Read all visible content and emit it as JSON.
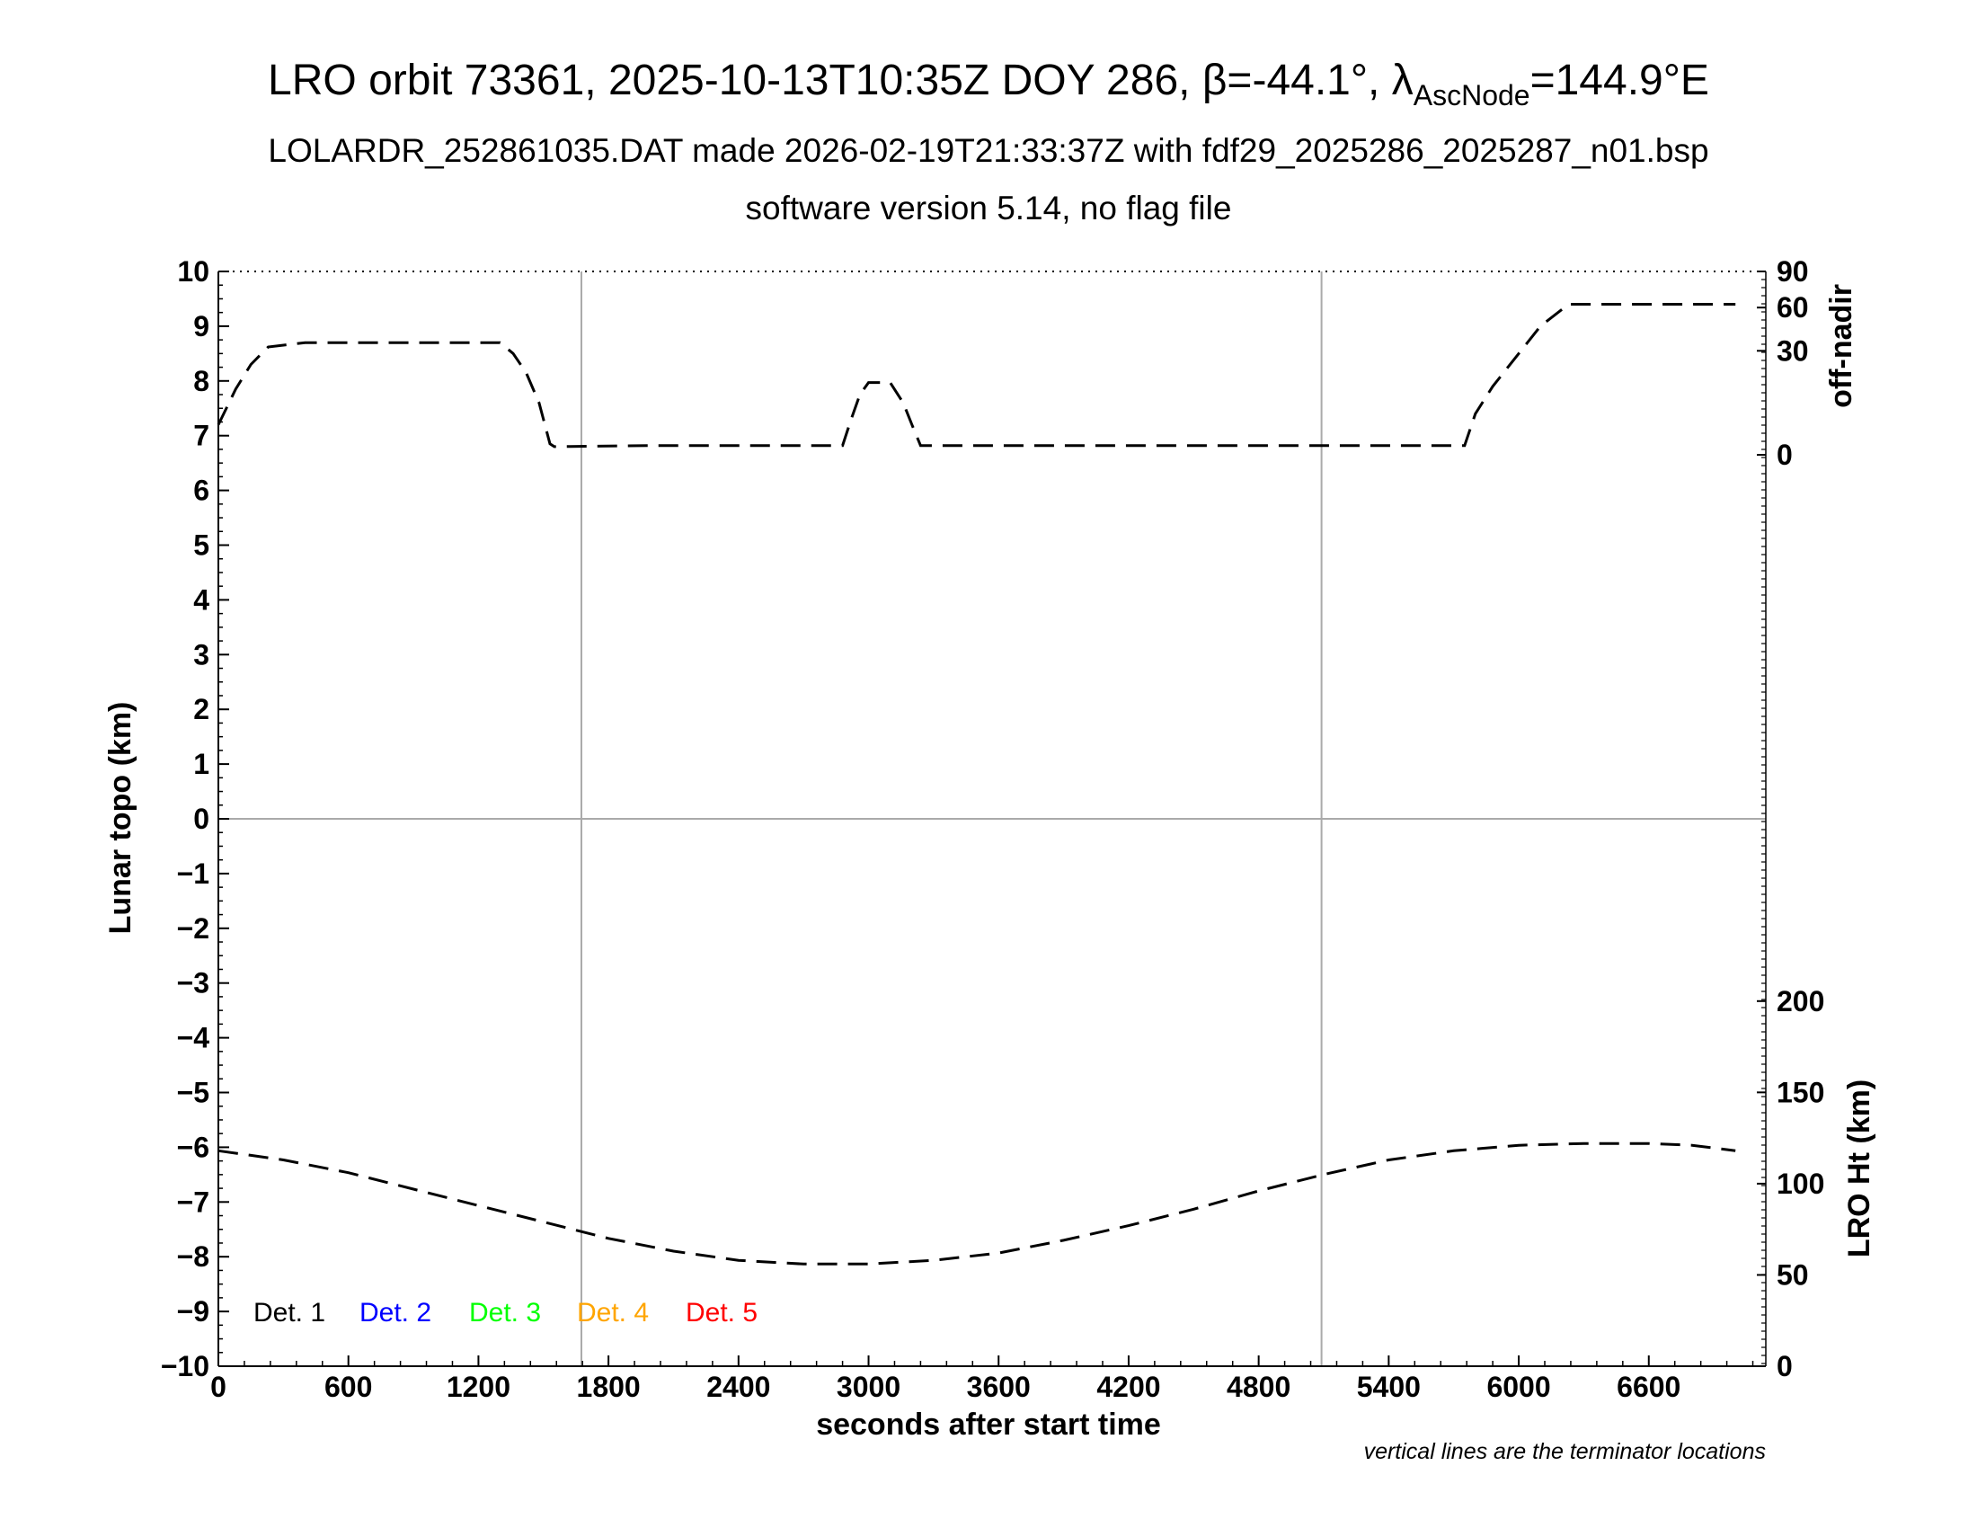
{
  "title": {
    "prefix": "LRO orbit 73361, 2025-10-13T10:35Z DOY 286, ",
    "beta": "β=-44.1°, ",
    "lambda": "λ",
    "lambda_sub": "AscNode",
    "lambda_value": "=144.9°E"
  },
  "subtitle1": "LOLARDR_252861035.DAT made 2026-02-19T21:33:37Z with fdf29_2025286_2025287_n01.bsp",
  "subtitle2": "software version 5.14, no flag file",
  "footnote": "vertical lines are the terminator locations",
  "chart_data": {
    "type": "line",
    "xlabel": "seconds after start time",
    "ylabel_left": "Lunar topo (km)",
    "ylabel_right_top": "off-nadir",
    "ylabel_right_bottom": "LRO Ht (km)",
    "xlim": [
      0,
      7140
    ],
    "ylim_left": [
      -10,
      10
    ],
    "x_ticks": [
      0,
      600,
      1200,
      1800,
      2400,
      3000,
      3600,
      4200,
      4800,
      5400,
      6000,
      6600
    ],
    "y_ticks_left": [
      10,
      9,
      8,
      7,
      6,
      5,
      4,
      3,
      2,
      1,
      0,
      -1,
      -2,
      -3,
      -4,
      -5,
      -6,
      -7,
      -8,
      -9,
      -10
    ],
    "y_tick_labels_left": [
      "10",
      "9",
      "8",
      "7",
      "6",
      "5",
      "4",
      "3",
      "2",
      "1",
      "0",
      "−1",
      "−2",
      "−3",
      "−4",
      "−5",
      "−6",
      "−7",
      "−8",
      "−9",
      "−10"
    ],
    "off_nadir_axis": {
      "ticks": [
        {
          "value": 90,
          "label": "90",
          "topo": 10.0
        },
        {
          "value": 60,
          "label": "60",
          "topo": 9.34
        },
        {
          "value": 30,
          "label": "30",
          "topo": 8.55
        },
        {
          "value": 0,
          "label": "0",
          "topo": 6.65
        }
      ]
    },
    "lro_ht_axis": {
      "range_km": [
        0,
        200
      ],
      "topo_range": [
        -10,
        -3.33
      ],
      "ticks": [
        0,
        50,
        100,
        150,
        200
      ]
    },
    "terminator_lines_x": [
      1675,
      5090
    ],
    "grid_zero_line": true,
    "series": [
      {
        "id": "off-nadir",
        "axis": "off-nadir",
        "color": "#000000",
        "dash": true,
        "points": [
          [
            0,
            7.2
          ],
          [
            80,
            7.85
          ],
          [
            150,
            8.3
          ],
          [
            230,
            8.62
          ],
          [
            400,
            8.7
          ],
          [
            800,
            8.7
          ],
          [
            1300,
            8.7
          ],
          [
            1360,
            8.5
          ],
          [
            1420,
            8.15
          ],
          [
            1480,
            7.6
          ],
          [
            1530,
            6.85
          ],
          [
            1550,
            6.8
          ],
          [
            2000,
            6.82
          ],
          [
            2880,
            6.82
          ],
          [
            2920,
            7.3
          ],
          [
            2960,
            7.75
          ],
          [
            3000,
            7.97
          ],
          [
            3100,
            7.97
          ],
          [
            3160,
            7.6
          ],
          [
            3200,
            7.2
          ],
          [
            3240,
            6.82
          ],
          [
            3600,
            6.82
          ],
          [
            4200,
            6.82
          ],
          [
            4800,
            6.82
          ],
          [
            5750,
            6.82
          ],
          [
            5800,
            7.4
          ],
          [
            5880,
            7.9
          ],
          [
            6000,
            8.5
          ],
          [
            6100,
            9.0
          ],
          [
            6230,
            9.4
          ],
          [
            6500,
            9.4
          ],
          [
            7000,
            9.4
          ]
        ]
      },
      {
        "id": "lro-ht",
        "axis": "lro-ht",
        "color": "#000000",
        "dash": true,
        "points": [
          [
            0,
            118
          ],
          [
            300,
            113
          ],
          [
            600,
            106
          ],
          [
            900,
            97
          ],
          [
            1200,
            88
          ],
          [
            1500,
            79
          ],
          [
            1800,
            70
          ],
          [
            2100,
            63
          ],
          [
            2400,
            58
          ],
          [
            2700,
            56
          ],
          [
            3000,
            56
          ],
          [
            3300,
            58
          ],
          [
            3600,
            62
          ],
          [
            3900,
            69
          ],
          [
            4200,
            77
          ],
          [
            4500,
            86
          ],
          [
            4800,
            96
          ],
          [
            5100,
            105
          ],
          [
            5400,
            113
          ],
          [
            5700,
            118
          ],
          [
            6000,
            121
          ],
          [
            6300,
            122
          ],
          [
            6600,
            122
          ],
          [
            6800,
            121
          ],
          [
            7000,
            118
          ]
        ]
      }
    ],
    "legend": {
      "placement": "bottom-left",
      "entries": [
        {
          "label": "Det. 1",
          "color": "#000000"
        },
        {
          "label": "Det. 2",
          "color": "#0000ff"
        },
        {
          "label": "Det. 3",
          "color": "#00ff00"
        },
        {
          "label": "Det. 4",
          "color": "#ffa500"
        },
        {
          "label": "Det. 5",
          "color": "#ff0000"
        }
      ]
    }
  }
}
